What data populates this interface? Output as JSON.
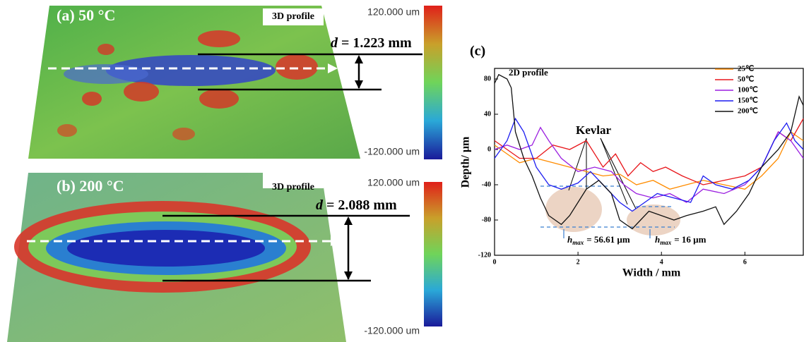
{
  "panel_a": {
    "label": "(a) 50 °C",
    "tag": "3D profile",
    "d_symbol": "d",
    "d_text": "= 1.223 mm",
    "scale_max": "120.000 um",
    "scale_min": "-120.000 um"
  },
  "panel_b": {
    "label": "(b) 200 °C",
    "tag": "3D profile",
    "d_symbol": "d",
    "d_text": "= 2.088 mm",
    "scale_max": "120.000 um",
    "scale_min": "-120.000 um"
  },
  "chart_data": {
    "type": "line",
    "panel_label": "(c)",
    "subtitle": "2D profile",
    "x_label": "Width / mm",
    "y_label": "Depth/ µm",
    "xlim": [
      0,
      7.4
    ],
    "ylim": [
      -120,
      92
    ],
    "xticks": [
      0,
      2,
      4,
      6
    ],
    "yticks": [
      80,
      40,
      0,
      -40,
      -80,
      -120
    ],
    "legend": "upper right",
    "annotations": {
      "kevlar": "Kevlar",
      "hmax_1": {
        "symbol": "h",
        "subscript": "max",
        "text": "= 56.61 µm"
      },
      "hmax_2": {
        "symbol": "h",
        "subscript": "max",
        "text": "= 16 µm"
      }
    },
    "series": [
      {
        "name": "25℃",
        "color": "#ff8c00",
        "x": [
          0,
          0.3,
          0.6,
          1.0,
          1.4,
          1.8,
          2.2,
          2.6,
          3.0,
          3.4,
          3.8,
          4.2,
          4.6,
          5.0,
          5.5,
          6.0,
          6.4,
          6.8,
          7.1,
          7.4
        ],
        "values": [
          5,
          -5,
          -15,
          -10,
          -15,
          -20,
          -25,
          -30,
          -28,
          -40,
          -35,
          -45,
          -40,
          -35,
          -40,
          -45,
          -30,
          -10,
          20,
          10
        ]
      },
      {
        "name": "50℃",
        "color": "#e8161b",
        "x": [
          0,
          0.3,
          0.6,
          1.0,
          1.4,
          1.8,
          2.2,
          2.6,
          2.9,
          3.2,
          3.5,
          3.8,
          4.1,
          4.5,
          5.0,
          5.5,
          6.0,
          6.4,
          6.8,
          7.1,
          7.4
        ],
        "values": [
          10,
          0,
          -10,
          -10,
          5,
          0,
          10,
          -20,
          -5,
          -30,
          -15,
          -25,
          -20,
          -30,
          -40,
          -35,
          -30,
          -20,
          20,
          10,
          35
        ]
      },
      {
        "name": "100℃",
        "color": "#9b1fe0",
        "x": [
          0,
          0.3,
          0.6,
          0.9,
          1.1,
          1.3,
          1.6,
          2.0,
          2.4,
          2.8,
          3.1,
          3.4,
          3.8,
          4.2,
          4.6,
          5.0,
          5.5,
          6.0,
          6.4,
          6.8,
          7.1,
          7.4
        ],
        "values": [
          0,
          5,
          0,
          5,
          25,
          10,
          -10,
          -25,
          -20,
          -25,
          -40,
          -50,
          -55,
          -50,
          -60,
          -45,
          -50,
          -40,
          -20,
          20,
          10,
          -10
        ]
      },
      {
        "name": "150℃",
        "color": "#1c1cf0",
        "x": [
          0,
          0.3,
          0.5,
          0.7,
          1.0,
          1.3,
          1.6,
          2.0,
          2.3,
          2.6,
          3.0,
          3.3,
          3.6,
          3.9,
          4.3,
          4.7,
          5.0,
          5.3,
          5.7,
          6.1,
          6.4,
          6.7,
          7.0,
          7.2,
          7.4
        ],
        "values": [
          -10,
          10,
          35,
          20,
          -20,
          -40,
          -45,
          -38,
          -25,
          -40,
          -60,
          -70,
          -60,
          -50,
          -55,
          -60,
          -30,
          -40,
          -45,
          -35,
          -20,
          10,
          30,
          10,
          0
        ]
      },
      {
        "name": "200℃",
        "color": "#111111",
        "x": [
          0,
          0.1,
          0.3,
          0.4,
          0.5,
          0.7,
          0.9,
          1.1,
          1.3,
          1.6,
          1.8,
          2.0,
          2.2,
          2.5,
          2.8,
          3.0,
          3.3,
          3.5,
          3.7,
          4.0,
          4.3,
          4.6,
          5.0,
          5.3,
          5.5,
          5.8,
          6.1,
          6.4,
          6.8,
          7.1,
          7.3,
          7.4
        ],
        "values": [
          75,
          85,
          80,
          70,
          20,
          -10,
          -30,
          -55,
          -75,
          -85,
          -75,
          -60,
          -45,
          -35,
          -50,
          -80,
          -90,
          -80,
          -70,
          -75,
          -80,
          -75,
          -70,
          -65,
          -85,
          -70,
          -50,
          -20,
          0,
          20,
          60,
          50
        ]
      }
    ]
  }
}
